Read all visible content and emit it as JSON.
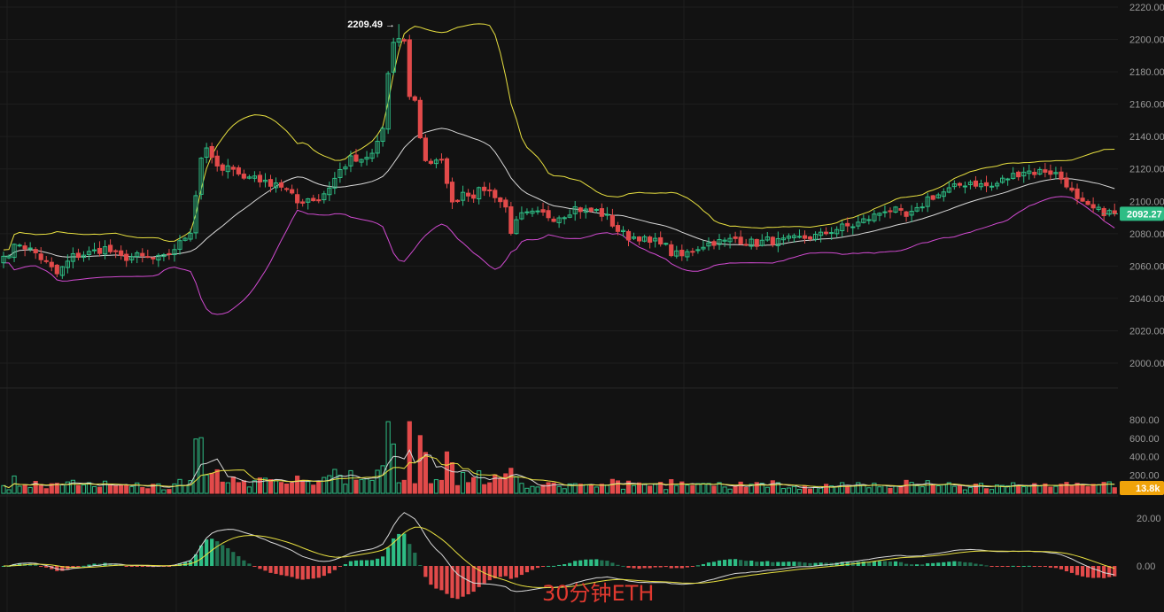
{
  "chart_data": {
    "type": "candlestick",
    "price_axis": {
      "ticks": [
        "2220.00",
        "2200.00",
        "2180.00",
        "2160.00",
        "2140.00",
        "2120.00",
        "2100.00",
        "2080.00",
        "2060.00",
        "2040.00",
        "2020.00",
        "2000.00"
      ],
      "range": [
        1990,
        2222
      ]
    },
    "volume_axis": {
      "ticks": [
        "800.00",
        "600.00",
        "400.00",
        "200.00"
      ],
      "range": [
        0,
        850
      ]
    },
    "macd_axis": {
      "ticks": [
        "20.00",
        "0.00"
      ],
      "range": [
        -16,
        32
      ]
    },
    "high_marker": {
      "value": 2209.49,
      "label": "2209.49 →"
    },
    "last_price": {
      "value": 2092.27,
      "label": "2092.27"
    },
    "last_volume": {
      "label": "13.8k"
    },
    "watermark": "30分钟ETH",
    "grid": true,
    "colors": {
      "up": "#2ebd85",
      "down": "#e24a4a",
      "ma": "#d8d8d8",
      "upper_band": "#e8e040",
      "lower_band": "#d04ad0",
      "bg": "#121212",
      "vol_ma5": "#e8e040",
      "vol_ma10": "#d8d8d8"
    },
    "anchors": [
      [
        0,
        2066
      ],
      [
        3,
        2074
      ],
      [
        6,
        2068
      ],
      [
        10,
        2055
      ],
      [
        13,
        2066
      ],
      [
        16,
        2068
      ],
      [
        19,
        2071
      ],
      [
        22,
        2065
      ],
      [
        25,
        2066
      ],
      [
        28,
        2064
      ],
      [
        30,
        2065
      ],
      [
        33,
        2074
      ],
      [
        35,
        2082
      ],
      [
        37,
        2127
      ],
      [
        38,
        2134
      ],
      [
        39,
        2125
      ],
      [
        41,
        2118
      ],
      [
        43,
        2122
      ],
      [
        45,
        2114
      ],
      [
        47,
        2116
      ],
      [
        49,
        2111
      ],
      [
        51,
        2112
      ],
      [
        53,
        2107
      ],
      [
        55,
        2099
      ],
      [
        57,
        2102
      ],
      [
        59,
        2101
      ],
      [
        61,
        2109
      ],
      [
        63,
        2119
      ],
      [
        65,
        2126
      ],
      [
        67,
        2124
      ],
      [
        69,
        2129
      ],
      [
        71,
        2145
      ],
      [
        72,
        2178
      ],
      [
        73,
        2196
      ],
      [
        74,
        2201
      ],
      [
        75,
        2198
      ],
      [
        76,
        2166
      ],
      [
        77,
        2162
      ],
      [
        78,
        2140
      ],
      [
        79,
        2126
      ],
      [
        80,
        2124
      ],
      [
        82,
        2124
      ],
      [
        83,
        2113
      ],
      [
        84,
        2098
      ],
      [
        86,
        2106
      ],
      [
        88,
        2104
      ],
      [
        90,
        2108
      ],
      [
        92,
        2104
      ],
      [
        94,
        2096
      ],
      [
        95,
        2082
      ],
      [
        97,
        2091
      ],
      [
        99,
        2092
      ],
      [
        101,
        2092
      ],
      [
        103,
        2090
      ],
      [
        105,
        2092
      ],
      [
        107,
        2096
      ],
      [
        109,
        2094
      ],
      [
        111,
        2094
      ],
      [
        113,
        2090
      ],
      [
        115,
        2082
      ],
      [
        117,
        2078
      ],
      [
        119,
        2078
      ],
      [
        121,
        2074
      ],
      [
        123,
        2076
      ],
      [
        125,
        2068
      ],
      [
        127,
        2066
      ],
      [
        129,
        2070
      ],
      [
        131,
        2073
      ],
      [
        133,
        2075
      ],
      [
        135,
        2075
      ],
      [
        137,
        2077
      ],
      [
        139,
        2075
      ],
      [
        141,
        2074
      ],
      [
        143,
        2076
      ],
      [
        145,
        2075
      ],
      [
        147,
        2076
      ],
      [
        149,
        2077
      ],
      [
        151,
        2078
      ],
      [
        153,
        2079
      ],
      [
        155,
        2082
      ],
      [
        157,
        2084
      ],
      [
        159,
        2085
      ],
      [
        161,
        2088
      ],
      [
        163,
        2091
      ],
      [
        165,
        2095
      ],
      [
        167,
        2094
      ],
      [
        169,
        2090
      ],
      [
        171,
        2094
      ],
      [
        173,
        2102
      ],
      [
        175,
        2104
      ],
      [
        177,
        2107
      ],
      [
        179,
        2110
      ],
      [
        181,
        2112
      ],
      [
        183,
        2110
      ],
      [
        185,
        2109
      ],
      [
        187,
        2113
      ],
      [
        189,
        2116
      ],
      [
        191,
        2119
      ],
      [
        193,
        2118
      ],
      [
        195,
        2119
      ],
      [
        197,
        2117
      ],
      [
        199,
        2111
      ],
      [
        201,
        2100
      ],
      [
        203,
        2096
      ],
      [
        205,
        2094
      ],
      [
        207,
        2093
      ],
      [
        208,
        2092.27
      ]
    ]
  }
}
